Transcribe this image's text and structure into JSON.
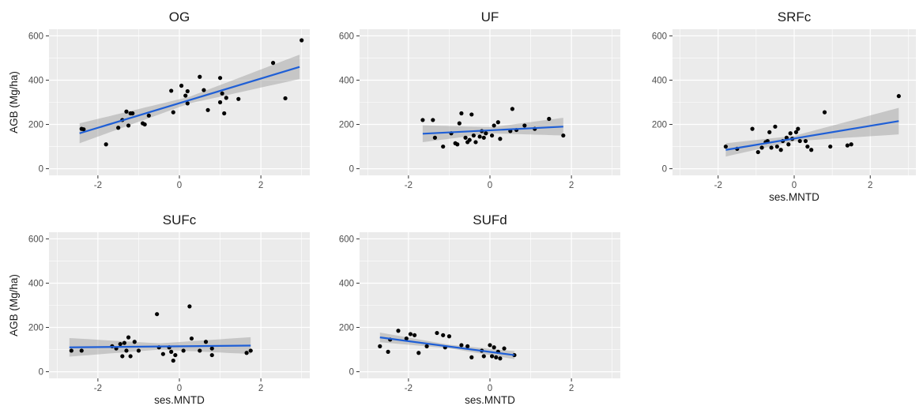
{
  "chart_data": [
    {
      "type": "scatter",
      "title": "OG",
      "xlabel": "",
      "ylabel": "AGB (Mg/ha)",
      "xlim": [
        -3.2,
        3.2
      ],
      "ylim": [
        -30,
        630
      ],
      "xticks": [
        "-2",
        "0",
        "2"
      ],
      "yticks": [
        "0",
        "200",
        "400",
        "600"
      ],
      "grid": true,
      "points": [
        [
          -2.4,
          180
        ],
        [
          -2.35,
          178
        ],
        [
          -1.8,
          110
        ],
        [
          -1.5,
          185
        ],
        [
          -1.4,
          220
        ],
        [
          -1.3,
          258
        ],
        [
          -1.25,
          195
        ],
        [
          -1.2,
          250
        ],
        [
          -1.15,
          250
        ],
        [
          -0.9,
          205
        ],
        [
          -0.85,
          200
        ],
        [
          -0.75,
          240
        ],
        [
          -0.2,
          352
        ],
        [
          -0.15,
          255
        ],
        [
          0.05,
          375
        ],
        [
          0.15,
          330
        ],
        [
          0.2,
          295
        ],
        [
          0.2,
          350
        ],
        [
          0.5,
          415
        ],
        [
          0.6,
          355
        ],
        [
          0.7,
          265
        ],
        [
          1.0,
          410
        ],
        [
          1.0,
          300
        ],
        [
          1.05,
          340
        ],
        [
          1.1,
          250
        ],
        [
          1.15,
          320
        ],
        [
          1.45,
          315
        ],
        [
          2.3,
          478
        ],
        [
          2.6,
          318
        ],
        [
          3.0,
          580
        ]
      ],
      "trend": {
        "x": [
          -2.45,
          2.95
        ],
        "y": [
          160,
          460
        ]
      },
      "ci_half_width": {
        "x": [
          -2.45,
          0.25,
          2.95
        ],
        "y": [
          45,
          15,
          55
        ]
      }
    },
    {
      "type": "scatter",
      "title": "UF",
      "xlabel": "",
      "ylabel": "",
      "xlim": [
        -3.2,
        3.2
      ],
      "ylim": [
        -30,
        630
      ],
      "xticks": [
        "-2",
        "0",
        "2"
      ],
      "yticks": [
        "0",
        "200",
        "400",
        "600"
      ],
      "grid": true,
      "points": [
        [
          -1.65,
          220
        ],
        [
          -1.4,
          220
        ],
        [
          -1.35,
          140
        ],
        [
          -1.15,
          100
        ],
        [
          -0.95,
          160
        ],
        [
          -0.85,
          115
        ],
        [
          -0.8,
          110
        ],
        [
          -0.75,
          205
        ],
        [
          -0.7,
          250
        ],
        [
          -0.6,
          140
        ],
        [
          -0.55,
          120
        ],
        [
          -0.5,
          130
        ],
        [
          -0.45,
          245
        ],
        [
          -0.4,
          150
        ],
        [
          -0.35,
          120
        ],
        [
          -0.25,
          145
        ],
        [
          -0.2,
          170
        ],
        [
          -0.15,
          140
        ],
        [
          -0.1,
          160
        ],
        [
          0.05,
          150
        ],
        [
          0.1,
          195
        ],
        [
          0.2,
          210
        ],
        [
          0.25,
          135
        ],
        [
          0.5,
          170
        ],
        [
          0.55,
          270
        ],
        [
          0.65,
          175
        ],
        [
          0.85,
          195
        ],
        [
          1.1,
          180
        ],
        [
          1.45,
          225
        ],
        [
          1.8,
          150
        ]
      ],
      "trend": {
        "x": [
          -1.65,
          1.8
        ],
        "y": [
          158,
          190
        ]
      },
      "ci_half_width": {
        "x": [
          -1.65,
          0.05,
          1.8
        ],
        "y": [
          38,
          14,
          40
        ]
      }
    },
    {
      "type": "scatter",
      "title": "SRFc",
      "xlabel": "ses.MNTD",
      "ylabel": "",
      "xlim": [
        -3.2,
        3.2
      ],
      "ylim": [
        -30,
        630
      ],
      "xticks": [
        "-2",
        "0",
        "2"
      ],
      "yticks": [
        "0",
        "200",
        "400",
        "600"
      ],
      "grid": true,
      "points": [
        [
          -1.8,
          100
        ],
        [
          -1.5,
          90
        ],
        [
          -1.1,
          180
        ],
        [
          -0.95,
          75
        ],
        [
          -0.85,
          95
        ],
        [
          -0.75,
          120
        ],
        [
          -0.7,
          125
        ],
        [
          -0.65,
          165
        ],
        [
          -0.6,
          95
        ],
        [
          -0.5,
          190
        ],
        [
          -0.45,
          100
        ],
        [
          -0.35,
          85
        ],
        [
          -0.3,
          125
        ],
        [
          -0.2,
          140
        ],
        [
          -0.15,
          110
        ],
        [
          -0.1,
          160
        ],
        [
          -0.05,
          135
        ],
        [
          0.05,
          165
        ],
        [
          0.1,
          180
        ],
        [
          0.15,
          125
        ],
        [
          0.3,
          125
        ],
        [
          0.35,
          100
        ],
        [
          0.45,
          85
        ],
        [
          0.8,
          255
        ],
        [
          0.95,
          100
        ],
        [
          1.4,
          105
        ],
        [
          1.5,
          110
        ],
        [
          2.75,
          328
        ]
      ],
      "trend": {
        "x": [
          -1.8,
          2.75
        ],
        "y": [
          85,
          215
        ]
      },
      "ci_half_width": {
        "x": [
          -1.8,
          0.0,
          2.75
        ],
        "y": [
          30,
          12,
          60
        ]
      }
    },
    {
      "type": "scatter",
      "title": "SUFc",
      "xlabel": "ses.MNTD",
      "ylabel": "AGB (Mg/ha)",
      "xlim": [
        -3.2,
        3.2
      ],
      "ylim": [
        -30,
        630
      ],
      "xticks": [
        "-2",
        "0",
        "2"
      ],
      "yticks": [
        "0",
        "200",
        "400",
        "600"
      ],
      "grid": true,
      "points": [
        [
          -2.65,
          95
        ],
        [
          -2.4,
          95
        ],
        [
          -1.65,
          115
        ],
        [
          -1.55,
          105
        ],
        [
          -1.45,
          125
        ],
        [
          -1.4,
          70
        ],
        [
          -1.35,
          130
        ],
        [
          -1.3,
          95
        ],
        [
          -1.25,
          155
        ],
        [
          -1.2,
          70
        ],
        [
          -1.1,
          135
        ],
        [
          -1.0,
          95
        ],
        [
          -0.55,
          260
        ],
        [
          -0.5,
          110
        ],
        [
          -0.4,
          80
        ],
        [
          -0.25,
          110
        ],
        [
          -0.2,
          90
        ],
        [
          -0.15,
          50
        ],
        [
          -0.1,
          75
        ],
        [
          0.1,
          95
        ],
        [
          0.25,
          295
        ],
        [
          0.3,
          150
        ],
        [
          0.5,
          95
        ],
        [
          0.65,
          135
        ],
        [
          0.8,
          75
        ],
        [
          0.8,
          105
        ],
        [
          1.65,
          85
        ],
        [
          1.75,
          95
        ]
      ],
      "trend": {
        "x": [
          -2.7,
          1.75
        ],
        "y": [
          110,
          118
        ]
      },
      "ci_half_width": {
        "x": [
          -2.7,
          -0.5,
          1.75
        ],
        "y": [
          42,
          14,
          38
        ]
      }
    },
    {
      "type": "scatter",
      "title": "SUFd",
      "xlabel": "ses.MNTD",
      "ylabel": "",
      "xlim": [
        -3.2,
        3.2
      ],
      "ylim": [
        -30,
        630
      ],
      "xticks": [
        "-2",
        "0",
        "2"
      ],
      "yticks": [
        "0",
        "200",
        "400",
        "600"
      ],
      "grid": true,
      "points": [
        [
          -2.7,
          115
        ],
        [
          -2.5,
          90
        ],
        [
          -2.45,
          145
        ],
        [
          -2.25,
          185
        ],
        [
          -2.05,
          150
        ],
        [
          -1.95,
          170
        ],
        [
          -1.85,
          165
        ],
        [
          -1.75,
          85
        ],
        [
          -1.55,
          115
        ],
        [
          -1.3,
          175
        ],
        [
          -1.15,
          165
        ],
        [
          -1.1,
          110
        ],
        [
          -1.0,
          160
        ],
        [
          -0.7,
          120
        ],
        [
          -0.55,
          115
        ],
        [
          -0.45,
          65
        ],
        [
          -0.2,
          95
        ],
        [
          -0.15,
          70
        ],
        [
          0.0,
          120
        ],
        [
          0.05,
          70
        ],
        [
          0.1,
          110
        ],
        [
          0.15,
          65
        ],
        [
          0.2,
          90
        ],
        [
          0.25,
          60
        ],
        [
          0.35,
          105
        ],
        [
          0.6,
          75
        ]
      ],
      "trend": {
        "x": [
          -2.7,
          0.6
        ],
        "y": [
          155,
          75
        ]
      },
      "ci_half_width": {
        "x": [
          -2.7,
          -1.0,
          0.6
        ],
        "y": [
          22,
          8,
          18
        ]
      }
    }
  ],
  "colors": {
    "panel_bg": "#ebebeb",
    "grid": "#ffffff",
    "point": "#000000",
    "trend": "#1f5fd6",
    "ci_band": "#999999"
  }
}
